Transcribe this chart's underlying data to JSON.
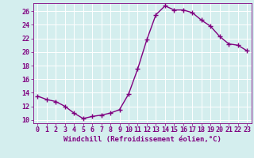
{
  "x": [
    0,
    1,
    2,
    3,
    4,
    5,
    6,
    7,
    8,
    9,
    10,
    11,
    12,
    13,
    14,
    15,
    16,
    17,
    18,
    19,
    20,
    21,
    22,
    23
  ],
  "y": [
    13.5,
    13.0,
    12.7,
    12.0,
    11.0,
    10.2,
    10.5,
    10.7,
    11.0,
    11.5,
    13.8,
    17.5,
    21.8,
    25.5,
    26.8,
    26.2,
    26.2,
    25.8,
    24.7,
    23.8,
    22.3,
    21.2,
    21.0,
    20.2
  ],
  "line_color": "#800080",
  "marker": "+",
  "markersize": 4,
  "linewidth": 1.0,
  "xlim": [
    -0.5,
    23.5
  ],
  "ylim": [
    9.5,
    27.2
  ],
  "yticks": [
    10,
    12,
    14,
    16,
    18,
    20,
    22,
    24,
    26
  ],
  "xticks": [
    0,
    1,
    2,
    3,
    4,
    5,
    6,
    7,
    8,
    9,
    10,
    11,
    12,
    13,
    14,
    15,
    16,
    17,
    18,
    19,
    20,
    21,
    22,
    23
  ],
  "xlabel": "Windchill (Refroidissement éolien,°C)",
  "background_color": "#d4eeee",
  "grid_color": "#ffffff",
  "line_border_color": "#800080",
  "tick_color": "#800080",
  "label_color": "#800080",
  "xlabel_fontsize": 6.5,
  "tick_fontsize": 6.0
}
